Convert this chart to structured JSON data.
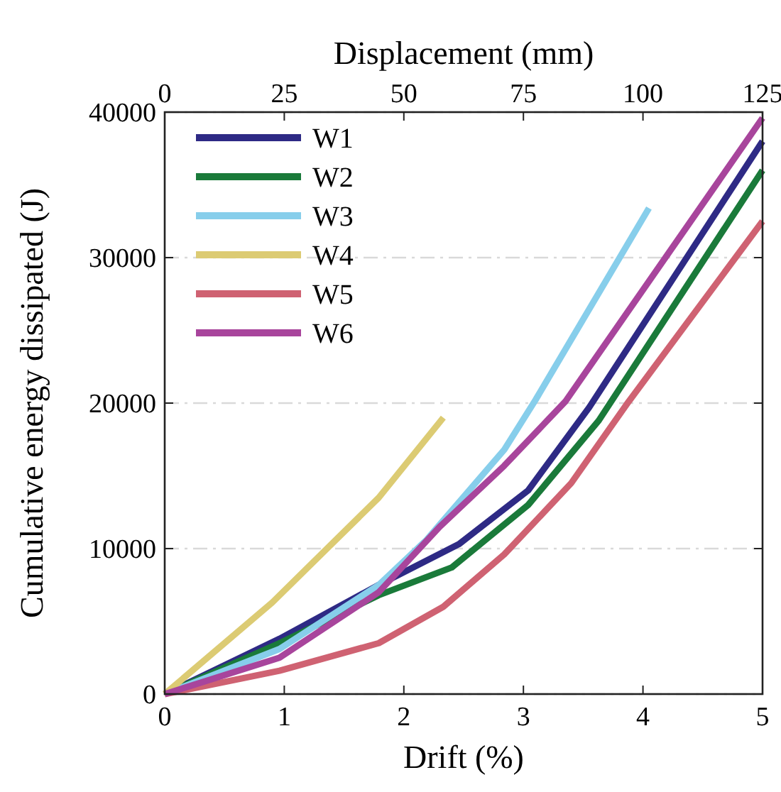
{
  "chart_data": {
    "type": "line",
    "xlabel": "Drift (%)",
    "ylabel": "Cumulative energy dissipated (J)",
    "x2label": "Displacement (mm)",
    "xlim": [
      0,
      5
    ],
    "xticks": [
      0,
      1,
      2,
      3,
      4,
      5
    ],
    "x2lim": [
      0,
      125
    ],
    "x2ticks": [
      0,
      25,
      50,
      75,
      100,
      125
    ],
    "ylim": [
      0,
      40000
    ],
    "yticks": [
      0,
      10000,
      20000,
      30000,
      40000
    ],
    "grid": "y",
    "legend": "top left",
    "line_style": "solid",
    "marker": "none",
    "series": [
      {
        "name": "W1",
        "color": "#2e2a85",
        "x": [
          0,
          0.96,
          1.79,
          2.46,
          3.04,
          3.55,
          4.35,
          5
        ],
        "values": [
          0,
          3800,
          7500,
          10300,
          14000,
          19700,
          29800,
          38000
        ]
      },
      {
        "name": "W2",
        "color": "#1a7a3a",
        "x": [
          0,
          0.96,
          1.79,
          2.4,
          3.04,
          3.63,
          5
        ],
        "values": [
          0,
          3500,
          6800,
          8700,
          13000,
          18800,
          36000
        ]
      },
      {
        "name": "W3",
        "color": "#87ceeb",
        "x": [
          0,
          0.96,
          1.79,
          2.19,
          2.84,
          3.1,
          4.05
        ],
        "values": [
          0,
          3100,
          7500,
          10600,
          16800,
          20200,
          33400
        ]
      },
      {
        "name": "W4",
        "color": "#dccb73",
        "x": [
          0,
          0.9,
          1.79,
          2.33
        ],
        "values": [
          0,
          6300,
          13500,
          19000
        ]
      },
      {
        "name": "W5",
        "color": "#cf6272",
        "x": [
          0,
          0.96,
          1.79,
          2.33,
          2.84,
          3.4,
          3.88,
          5
        ],
        "values": [
          0,
          1600,
          3500,
          6000,
          9600,
          14500,
          20100,
          32500
        ]
      },
      {
        "name": "W6",
        "color": "#a8459c",
        "x": [
          0,
          0.96,
          1.79,
          2.3,
          2.84,
          3.35,
          5
        ],
        "values": [
          0,
          2500,
          7000,
          11500,
          15700,
          20100,
          39600
        ]
      }
    ]
  }
}
